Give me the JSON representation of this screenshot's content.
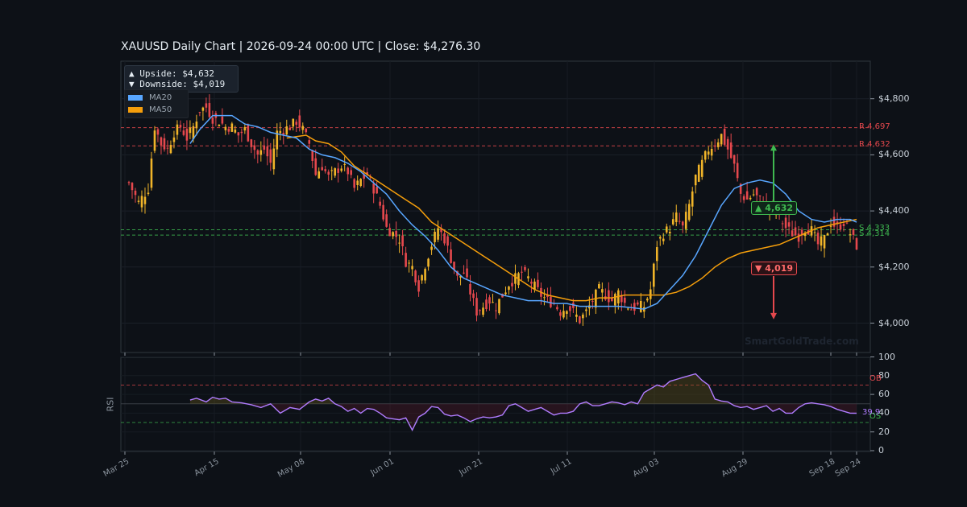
{
  "title": "XAUUSD  Daily Chart  |  2026-09-24 00:00 UTC  |  Close: $4,276.30",
  "watermark": "SmartGoldTrade.com",
  "legend": {
    "upside": "▲ Upside:   $4,632",
    "downside": "▼ Downside: $4,019",
    "ma20": "MA20",
    "ma50": "MA50"
  },
  "colors": {
    "bg": "#0d1117",
    "up": "#f0b429",
    "down": "#e5484d",
    "ma20": "#58a6ff",
    "ma50": "#f59e0b",
    "rsi": "#b07cff",
    "support": "#3fb950",
    "resistance": "#e5484d"
  },
  "chart_data": [
    {
      "type": "candlestick",
      "title": "XAUUSD  Daily Chart  |  2026-09-24 00:00 UTC  |  Close: $4,276.30",
      "x_ticks": [
        "Mar 25",
        "Apr 15",
        "May 08",
        "Jun 01",
        "Jun 21",
        "Jul 11",
        "Aug 03",
        "Aug 29",
        "Sep 18",
        "Sep 24"
      ],
      "y_ticks": [
        "$4,000",
        "$4,200",
        "$4,400",
        "$4,600",
        "$4,800"
      ],
      "ylim": [
        3900,
        4940
      ],
      "anchor_closes": [
        [
          0,
          4500
        ],
        [
          3,
          4430
        ],
        [
          6,
          4480
        ],
        [
          8,
          4700
        ],
        [
          10,
          4640
        ],
        [
          12,
          4620
        ],
        [
          14,
          4680
        ],
        [
          16,
          4700
        ],
        [
          18,
          4660
        ],
        [
          20,
          4700
        ],
        [
          22,
          4760
        ],
        [
          24,
          4770
        ],
        [
          26,
          4730
        ],
        [
          28,
          4720
        ],
        [
          30,
          4700
        ],
        [
          32,
          4700
        ],
        [
          34,
          4670
        ],
        [
          36,
          4690
        ],
        [
          38,
          4640
        ],
        [
          40,
          4600
        ],
        [
          42,
          4620
        ],
        [
          44,
          4570
        ],
        [
          46,
          4680
        ],
        [
          48,
          4690
        ],
        [
          50,
          4700
        ],
        [
          52,
          4720
        ],
        [
          54,
          4690
        ],
        [
          56,
          4640
        ],
        [
          58,
          4530
        ],
        [
          60,
          4560
        ],
        [
          62,
          4520
        ],
        [
          64,
          4540
        ],
        [
          66,
          4560
        ],
        [
          68,
          4540
        ],
        [
          70,
          4480
        ],
        [
          72,
          4510
        ],
        [
          74,
          4530
        ],
        [
          76,
          4480
        ],
        [
          78,
          4420
        ],
        [
          80,
          4340
        ],
        [
          82,
          4320
        ],
        [
          84,
          4300
        ],
        [
          86,
          4220
        ],
        [
          88,
          4200
        ],
        [
          90,
          4130
        ],
        [
          92,
          4210
        ],
        [
          94,
          4280
        ],
        [
          96,
          4340
        ],
        [
          98,
          4300
        ],
        [
          100,
          4230
        ],
        [
          102,
          4160
        ],
        [
          104,
          4180
        ],
        [
          106,
          4110
        ],
        [
          108,
          4040
        ],
        [
          110,
          4060
        ],
        [
          112,
          4080
        ],
        [
          114,
          4060
        ],
        [
          116,
          4100
        ],
        [
          118,
          4140
        ],
        [
          120,
          4160
        ],
        [
          122,
          4180
        ],
        [
          124,
          4160
        ],
        [
          126,
          4130
        ],
        [
          128,
          4100
        ],
        [
          130,
          4080
        ],
        [
          132,
          4070
        ],
        [
          134,
          4040
        ],
        [
          136,
          4060
        ],
        [
          138,
          4040
        ],
        [
          140,
          4010
        ],
        [
          142,
          4040
        ],
        [
          144,
          4080
        ],
        [
          146,
          4120
        ],
        [
          148,
          4100
        ],
        [
          150,
          4080
        ],
        [
          152,
          4110
        ],
        [
          154,
          4070
        ],
        [
          156,
          4050
        ],
        [
          158,
          4060
        ],
        [
          160,
          4060
        ],
        [
          162,
          4120
        ],
        [
          164,
          4280
        ],
        [
          166,
          4320
        ],
        [
          168,
          4340
        ],
        [
          170,
          4380
        ],
        [
          172,
          4340
        ],
        [
          174,
          4420
        ],
        [
          176,
          4520
        ],
        [
          178,
          4570
        ],
        [
          180,
          4620
        ],
        [
          182,
          4640
        ],
        [
          184,
          4670
        ],
        [
          186,
          4620
        ],
        [
          188,
          4560
        ],
        [
          190,
          4460
        ],
        [
          192,
          4440
        ],
        [
          194,
          4460
        ],
        [
          196,
          4440
        ],
        [
          198,
          4420
        ],
        [
          200,
          4400
        ],
        [
          202,
          4380
        ],
        [
          204,
          4340
        ],
        [
          206,
          4320
        ],
        [
          208,
          4310
        ],
        [
          210,
          4340
        ],
        [
          212,
          4330
        ],
        [
          214,
          4280
        ],
        [
          216,
          4300
        ],
        [
          218,
          4360
        ],
        [
          220,
          4340
        ],
        [
          222,
          4360
        ],
        [
          224,
          4320
        ],
        [
          226,
          4276
        ]
      ],
      "ma20_points": [
        [
          19,
          4640
        ],
        [
          22,
          4690
        ],
        [
          26,
          4740
        ],
        [
          32,
          4740
        ],
        [
          36,
          4710
        ],
        [
          40,
          4700
        ],
        [
          44,
          4680
        ],
        [
          48,
          4670
        ],
        [
          52,
          4660
        ],
        [
          56,
          4620
        ],
        [
          60,
          4600
        ],
        [
          64,
          4590
        ],
        [
          68,
          4570
        ],
        [
          72,
          4540
        ],
        [
          76,
          4500
        ],
        [
          80,
          4460
        ],
        [
          84,
          4400
        ],
        [
          88,
          4350
        ],
        [
          92,
          4310
        ],
        [
          96,
          4260
        ],
        [
          100,
          4200
        ],
        [
          104,
          4160
        ],
        [
          108,
          4140
        ],
        [
          112,
          4120
        ],
        [
          116,
          4100
        ],
        [
          120,
          4090
        ],
        [
          124,
          4080
        ],
        [
          128,
          4080
        ],
        [
          132,
          4070
        ],
        [
          136,
          4070
        ],
        [
          140,
          4060
        ],
        [
          144,
          4060
        ],
        [
          148,
          4060
        ],
        [
          152,
          4060
        ],
        [
          156,
          4055
        ],
        [
          160,
          4050
        ],
        [
          164,
          4070
        ],
        [
          168,
          4120
        ],
        [
          172,
          4170
        ],
        [
          176,
          4240
        ],
        [
          180,
          4330
        ],
        [
          184,
          4420
        ],
        [
          188,
          4480
        ],
        [
          192,
          4500
        ],
        [
          196,
          4510
        ],
        [
          200,
          4500
        ],
        [
          204,
          4460
        ],
        [
          208,
          4400
        ],
        [
          212,
          4370
        ],
        [
          216,
          4360
        ],
        [
          220,
          4370
        ],
        [
          224,
          4370
        ],
        [
          226,
          4360
        ]
      ],
      "ma50_points": [
        [
          49,
          4660
        ],
        [
          52,
          4665
        ],
        [
          55,
          4670
        ],
        [
          58,
          4650
        ],
        [
          62,
          4640
        ],
        [
          66,
          4610
        ],
        [
          70,
          4560
        ],
        [
          74,
          4530
        ],
        [
          78,
          4500
        ],
        [
          82,
          4470
        ],
        [
          86,
          4440
        ],
        [
          90,
          4410
        ],
        [
          94,
          4360
        ],
        [
          98,
          4330
        ],
        [
          102,
          4300
        ],
        [
          106,
          4270
        ],
        [
          110,
          4240
        ],
        [
          114,
          4210
        ],
        [
          118,
          4180
        ],
        [
          122,
          4150
        ],
        [
          126,
          4120
        ],
        [
          130,
          4100
        ],
        [
          134,
          4090
        ],
        [
          138,
          4080
        ],
        [
          142,
          4080
        ],
        [
          146,
          4090
        ],
        [
          150,
          4090
        ],
        [
          154,
          4100
        ],
        [
          158,
          4100
        ],
        [
          162,
          4100
        ],
        [
          166,
          4100
        ],
        [
          170,
          4110
        ],
        [
          174,
          4130
        ],
        [
          178,
          4160
        ],
        [
          182,
          4200
        ],
        [
          186,
          4230
        ],
        [
          190,
          4250
        ],
        [
          194,
          4260
        ],
        [
          198,
          4270
        ],
        [
          202,
          4280
        ],
        [
          206,
          4300
        ],
        [
          210,
          4320
        ],
        [
          214,
          4340
        ],
        [
          218,
          4350
        ],
        [
          222,
          4360
        ],
        [
          226,
          4370
        ]
      ],
      "levels": [
        {
          "label": "R 4,697",
          "value": 4697,
          "kind": "resistance"
        },
        {
          "label": "R 4,632",
          "value": 4632,
          "kind": "resistance"
        },
        {
          "label": "S 4,333",
          "value": 4333,
          "kind": "support"
        },
        {
          "label": "S 4,314",
          "value": 4314,
          "kind": "support"
        }
      ],
      "targets": [
        {
          "label": "▲ 4,632",
          "value": 4632,
          "direction": "up"
        },
        {
          "label": "▼ 4,019",
          "value": 4019,
          "direction": "down"
        }
      ]
    },
    {
      "type": "line",
      "ylabel": "RSI",
      "y_ticks": [
        "0",
        "20",
        "40",
        "60",
        "80",
        "100"
      ],
      "ylim": [
        0,
        100
      ],
      "overbought": {
        "label": "OB",
        "value": 70
      },
      "oversold": {
        "label": "OS",
        "value": 30
      },
      "last_label": "39.9",
      "points": [
        [
          19,
          54
        ],
        [
          21,
          56
        ],
        [
          24,
          52
        ],
        [
          26,
          57
        ],
        [
          28,
          55
        ],
        [
          30,
          56
        ],
        [
          32,
          52
        ],
        [
          35,
          51
        ],
        [
          38,
          49
        ],
        [
          41,
          46
        ],
        [
          44,
          50
        ],
        [
          47,
          40
        ],
        [
          50,
          46
        ],
        [
          53,
          44
        ],
        [
          56,
          52
        ],
        [
          58,
          55
        ],
        [
          60,
          53
        ],
        [
          62,
          56
        ],
        [
          64,
          50
        ],
        [
          66,
          47
        ],
        [
          68,
          42
        ],
        [
          70,
          45
        ],
        [
          72,
          40
        ],
        [
          74,
          45
        ],
        [
          76,
          44
        ],
        [
          78,
          40
        ],
        [
          80,
          35
        ],
        [
          82,
          34
        ],
        [
          84,
          33
        ],
        [
          86,
          35
        ],
        [
          88,
          22
        ],
        [
          90,
          36
        ],
        [
          92,
          40
        ],
        [
          94,
          47
        ],
        [
          96,
          46
        ],
        [
          98,
          39
        ],
        [
          100,
          37
        ],
        [
          102,
          38
        ],
        [
          104,
          35
        ],
        [
          106,
          31
        ],
        [
          108,
          34
        ],
        [
          110,
          36
        ],
        [
          112,
          35
        ],
        [
          114,
          36
        ],
        [
          116,
          38
        ],
        [
          118,
          48
        ],
        [
          120,
          50
        ],
        [
          122,
          46
        ],
        [
          124,
          42
        ],
        [
          126,
          44
        ],
        [
          128,
          46
        ],
        [
          130,
          42
        ],
        [
          132,
          38
        ],
        [
          134,
          40
        ],
        [
          136,
          40
        ],
        [
          138,
          42
        ],
        [
          140,
          50
        ],
        [
          142,
          52
        ],
        [
          144,
          48
        ],
        [
          146,
          48
        ],
        [
          148,
          50
        ],
        [
          150,
          52
        ],
        [
          152,
          51
        ],
        [
          154,
          49
        ],
        [
          156,
          52
        ],
        [
          158,
          50
        ],
        [
          160,
          62
        ],
        [
          162,
          66
        ],
        [
          164,
          70
        ],
        [
          166,
          68
        ],
        [
          168,
          74
        ],
        [
          170,
          76
        ],
        [
          172,
          78
        ],
        [
          174,
          80
        ],
        [
          176,
          82
        ],
        [
          178,
          75
        ],
        [
          180,
          70
        ],
        [
          182,
          55
        ],
        [
          184,
          53
        ],
        [
          186,
          52
        ],
        [
          188,
          48
        ],
        [
          190,
          46
        ],
        [
          192,
          47
        ],
        [
          194,
          44
        ],
        [
          196,
          46
        ],
        [
          198,
          48
        ],
        [
          200,
          42
        ],
        [
          202,
          45
        ],
        [
          204,
          40
        ],
        [
          206,
          40
        ],
        [
          208,
          46
        ],
        [
          210,
          50
        ],
        [
          212,
          51
        ],
        [
          214,
          50
        ],
        [
          216,
          49
        ],
        [
          218,
          47
        ],
        [
          220,
          44
        ],
        [
          222,
          42
        ],
        [
          224,
          40
        ],
        [
          226,
          39.9
        ]
      ]
    }
  ]
}
